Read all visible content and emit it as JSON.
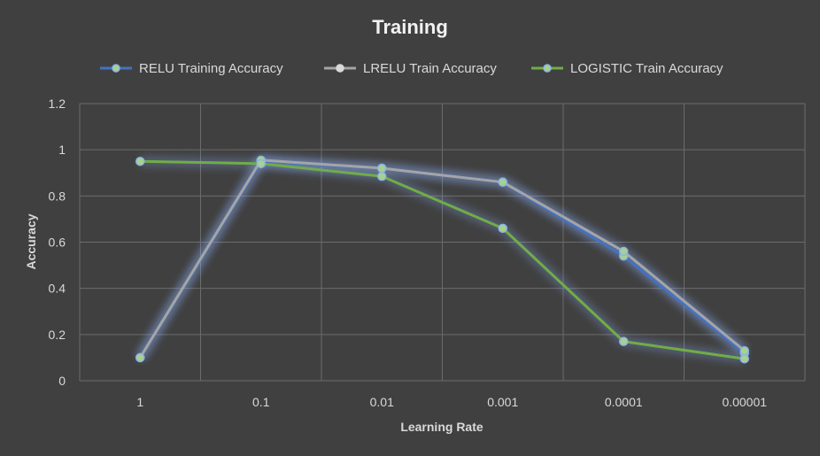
{
  "chart_data": {
    "type": "line",
    "title": "Training",
    "xlabel": "Learning Rate",
    "ylabel": "Accuracy",
    "categories": [
      "1",
      "0.1",
      "0.01",
      "0.001",
      "0.0001",
      "0.00001"
    ],
    "ylim": [
      0,
      1.2
    ],
    "yticks": [
      "0",
      "0.2",
      "0.4",
      "0.6",
      "0.8",
      "1",
      "1.2"
    ],
    "grid": true,
    "legend_position": "top",
    "series": [
      {
        "name": "RELU Training Accuracy",
        "color": "#4472c4",
        "values": [
          0.1,
          0.95,
          0.92,
          0.86,
          0.54,
          0.12
        ]
      },
      {
        "name": "LRELU Train Accuracy",
        "color": "#a5a5a5",
        "values": [
          0.1,
          0.955,
          0.92,
          0.86,
          0.56,
          0.13
        ]
      },
      {
        "name": "LOGISTIC Train Accuracy",
        "color": "#70ad47",
        "values": [
          0.95,
          0.94,
          0.885,
          0.66,
          0.17,
          0.095
        ]
      }
    ]
  }
}
